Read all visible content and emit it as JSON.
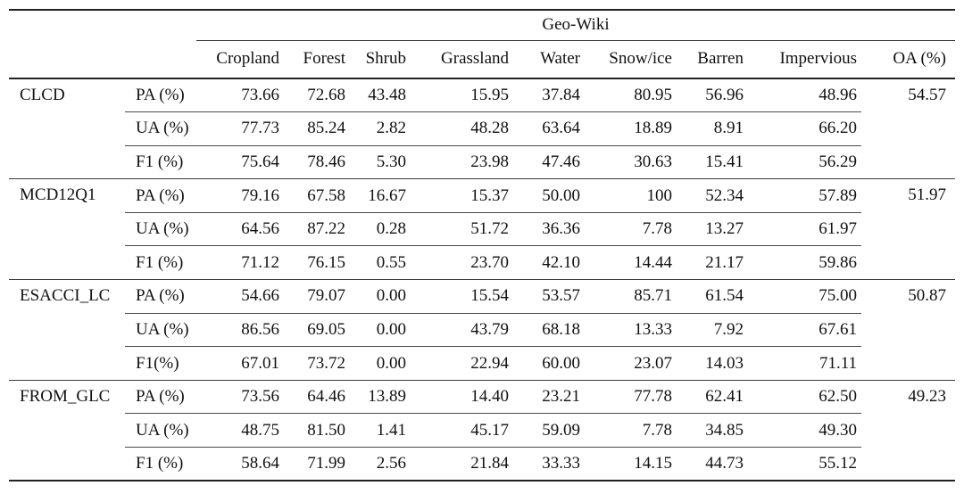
{
  "table": {
    "group_header": "Geo-Wiki",
    "columns": [
      "Cropland",
      "Forest",
      "Shrub",
      "Grassland",
      "Water",
      "Snow/ice",
      "Barren",
      "Impervious",
      "OA (%)"
    ],
    "products": [
      {
        "name": "CLCD",
        "rows": [
          {
            "metric": "PA (%)",
            "values": [
              "73.66",
              "72.68",
              "43.48",
              "15.95",
              "37.84",
              "80.95",
              "56.96",
              "48.96"
            ],
            "oa": "54.57"
          },
          {
            "metric": "UA (%)",
            "values": [
              "77.73",
              "85.24",
              "2.82",
              "48.28",
              "63.64",
              "18.89",
              "8.91",
              "66.20"
            ]
          },
          {
            "metric": "F1 (%)",
            "values": [
              "75.64",
              "78.46",
              "5.30",
              "23.98",
              "47.46",
              "30.63",
              "15.41",
              "56.29"
            ]
          }
        ]
      },
      {
        "name": "MCD12Q1",
        "rows": [
          {
            "metric": "PA (%)",
            "values": [
              "79.16",
              "67.58",
              "16.67",
              "15.37",
              "50.00",
              "100",
              "52.34",
              "57.89"
            ],
            "oa": "51.97"
          },
          {
            "metric": "UA (%)",
            "values": [
              "64.56",
              "87.22",
              "0.28",
              "51.72",
              "36.36",
              "7.78",
              "13.27",
              "61.97"
            ]
          },
          {
            "metric": "F1 (%)",
            "values": [
              "71.12",
              "76.15",
              "0.55",
              "23.70",
              "42.10",
              "14.44",
              "21.17",
              "59.86"
            ]
          }
        ]
      },
      {
        "name": "ESACCI_LC",
        "rows": [
          {
            "metric": "PA (%)",
            "values": [
              "54.66",
              "79.07",
              "0.00",
              "15.54",
              "53.57",
              "85.71",
              "61.54",
              "75.00"
            ],
            "oa": "50.87"
          },
          {
            "metric": "UA (%)",
            "values": [
              "86.56",
              "69.05",
              "0.00",
              "43.79",
              "68.18",
              "13.33",
              "7.92",
              "67.61"
            ]
          },
          {
            "metric": "F1(%)",
            "values": [
              "67.01",
              "73.72",
              "0.00",
              "22.94",
              "60.00",
              "23.07",
              "14.03",
              "71.11"
            ]
          }
        ]
      },
      {
        "name": "FROM_GLC",
        "rows": [
          {
            "metric": "PA (%)",
            "values": [
              "73.56",
              "64.46",
              "13.89",
              "14.40",
              "23.21",
              "77.78",
              "62.41",
              "62.50"
            ],
            "oa": "49.23"
          },
          {
            "metric": "UA (%)",
            "values": [
              "48.75",
              "81.50",
              "1.41",
              "45.17",
              "59.09",
              "7.78",
              "34.85",
              "49.30"
            ]
          },
          {
            "metric": "F1 (%)",
            "values": [
              "58.64",
              "71.99",
              "2.56",
              "21.84",
              "33.33",
              "14.15",
              "44.73",
              "55.12"
            ]
          }
        ]
      }
    ]
  }
}
